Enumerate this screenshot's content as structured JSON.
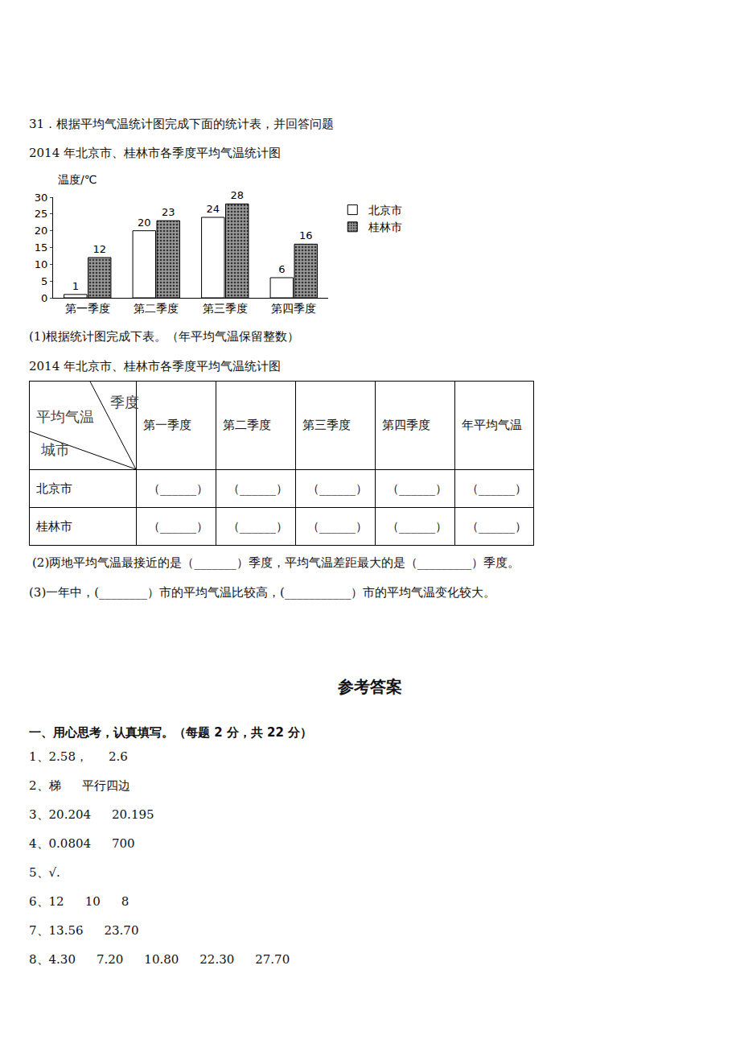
{
  "question": "31．根据平均气温统计图完成下面的统计表，并回答问题",
  "chart_caption": "2014 年北京市、桂林市各季度平均气温统计图",
  "chart_data": {
    "type": "bar",
    "ylabel": "温度/℃",
    "categories": [
      "第一季度",
      "第二季度",
      "第三季度",
      "第四季度"
    ],
    "series": [
      {
        "name": "北京市",
        "color": "#ffffff",
        "values": [
          1,
          20,
          24,
          6
        ]
      },
      {
        "name": "桂林市",
        "color": "#9a9a9a",
        "marker": "dotted",
        "values": [
          12,
          23,
          28,
          16
        ]
      }
    ],
    "ylim": [
      0,
      30
    ],
    "yticks": [
      0,
      5,
      10,
      15,
      20,
      25,
      30
    ],
    "data_labels": true,
    "grid": false,
    "legend": "right"
  },
  "part1": "(1)根据统计图完成下表。（年平均气温保留整数）",
  "table": {
    "caption": "2014 年北京市、桂林市各季度平均气温统计图",
    "corner": {
      "top": "季度",
      "middle": "平均气温",
      "bottom": "城市"
    },
    "header": [
      "第一季度",
      "第二季度",
      "第三季度",
      "第四季度",
      "年平均气温"
    ],
    "rows": [
      [
        "北京市",
        "（______）",
        "（______）",
        "（______）",
        "（______）",
        "（______）"
      ],
      [
        "桂林市",
        "（______）",
        "（______）",
        "（______）",
        "（______）",
        "（______）"
      ]
    ]
  },
  "part2": "(2)两地平均气温最接近的是（_______）季度，平均气温差距最大的是（_________）季度。",
  "part3": "(3)一年中，(________）市的平均气温比较高，(___________）市的平均气温变化较大。",
  "answers_title": "参考答案",
  "section": "一、用心思考，认真填写。（每题 2 分，共 22 分）",
  "answers": [
    [
      "1、2.58，",
      "2.6"
    ],
    [
      "2、梯",
      "平行四边"
    ],
    [
      "3、20.204",
      "20.195"
    ],
    [
      "4、0.0804",
      "700"
    ],
    [
      "5、√."
    ],
    [
      "6、12",
      "10",
      "8"
    ],
    [
      "7、13.56",
      "23.70"
    ],
    [
      "8、4.30",
      "7.20",
      "10.80",
      "22.30",
      "27.70"
    ]
  ]
}
